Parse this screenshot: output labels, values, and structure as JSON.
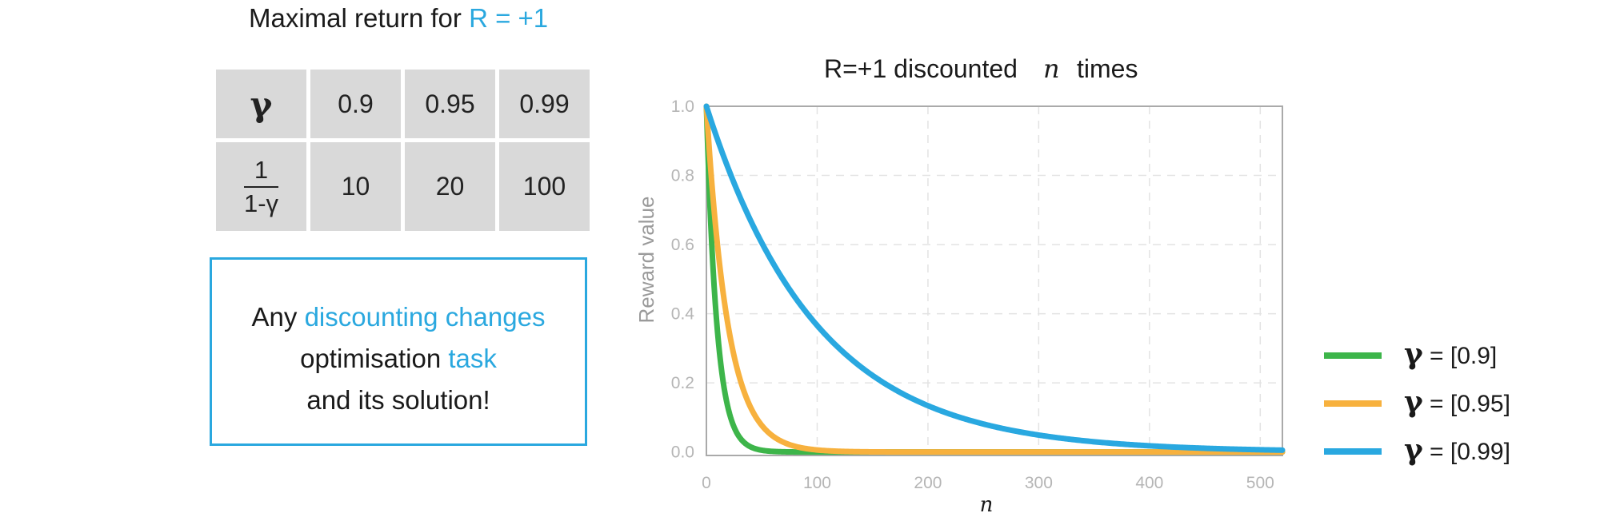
{
  "left_panel": {
    "title_prefix": "Maximal return for ",
    "title_accent": "R = +1",
    "table": {
      "header_symbol": "γ",
      "row1": [
        "0.9",
        "0.95",
        "0.99"
      ],
      "fraction_numerator": "1",
      "fraction_denominator": "1-γ",
      "row2": [
        "10",
        "20",
        "100"
      ]
    },
    "note": {
      "line1_prefix": "Any ",
      "line1_accent": "discounting changes",
      "line2_prefix": "optimisation ",
      "line2_accent": "task",
      "line3": "and its solution!"
    }
  },
  "colors": {
    "accent": "#2aa8df",
    "green": "#3db54a",
    "orange": "#f7b13e",
    "blue": "#29a8e0",
    "table_bg": "#d9d9d9"
  },
  "chart_data": {
    "type": "line",
    "title_prefix": "R=+1 discounted",
    "title_var": "n",
    "title_suffix": "times",
    "xlabel": "n",
    "ylabel": "Reward value",
    "xlim": [
      0,
      520
    ],
    "ylim": [
      -0.01,
      1.0
    ],
    "xticks": [
      "0",
      "100",
      "200",
      "300",
      "400",
      "500"
    ],
    "yticks": [
      "0.0",
      "0.2",
      "0.4",
      "0.6",
      "0.8",
      "1.0"
    ],
    "grid": true,
    "n_max": 520,
    "series": [
      {
        "name": "γ = [0.9]",
        "gamma_symbol": "γ",
        "gamma_text": "= [0.9]",
        "gamma": 0.9,
        "color": "#3db54a"
      },
      {
        "name": "γ = [0.95]",
        "gamma_symbol": "γ",
        "gamma_text": "= [0.95]",
        "gamma": 0.95,
        "color": "#f7b13e"
      },
      {
        "name": "γ = [0.99]",
        "gamma_symbol": "γ",
        "gamma_text": "= [0.99]",
        "gamma": 0.99,
        "color": "#29a8e0"
      }
    ],
    "legend_position": "right"
  }
}
